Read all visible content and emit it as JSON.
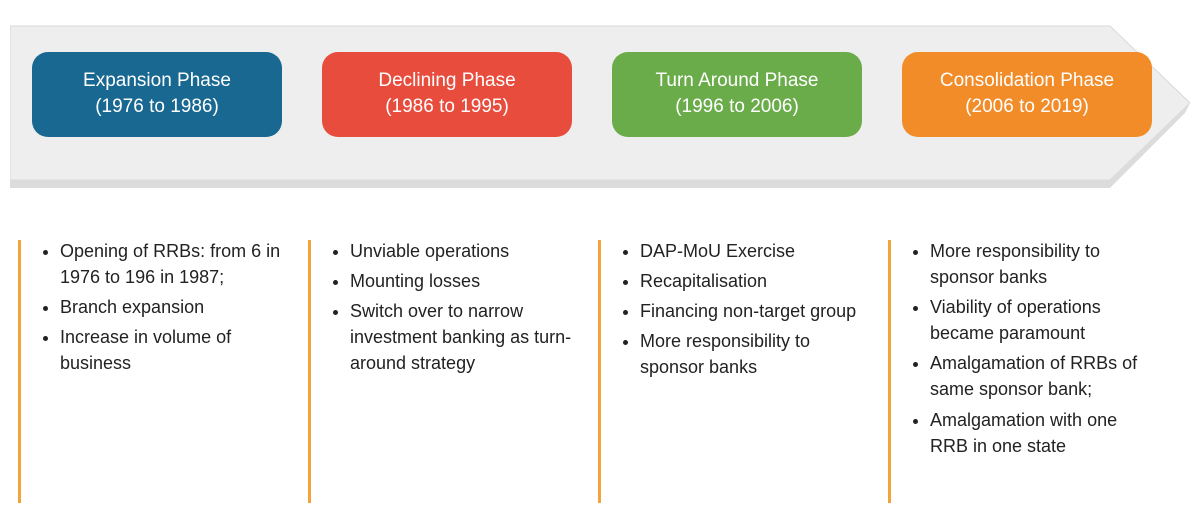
{
  "diagram": {
    "type": "infographic",
    "background_color": "#ffffff",
    "arrow_fill": "#eeeeee",
    "arrow_border": "#d9d9d9",
    "arrow_shadow": "#dcdcdc",
    "text_color": "#222222",
    "phase_font_size": 19,
    "bullet_font_size": 18,
    "columns": [
      {
        "title": "Expansion Phase",
        "years": "(1976 to 1986)",
        "color": "#186891",
        "accent": "#f2a33a",
        "bullets": [
          "Opening of RRBs: from 6 in 1976 to 196 in 1987;",
          "Branch expansion",
          "Increase in volume of business"
        ]
      },
      {
        "title": "Declining Phase",
        "years": "(1986 to 1995)",
        "color": "#e84c3d",
        "accent": "#f2a33a",
        "bullets": [
          "Unviable operations",
          "Mounting losses",
          "Switch over to narrow investment banking as turn-around strategy"
        ]
      },
      {
        "title": "Turn Around Phase",
        "years": "(1996 to 2006)",
        "color": "#6aab4a",
        "accent": "#f2a33a",
        "bullets": [
          "DAP-MoU Exercise",
          "Recapitalisation",
          "Financing non-target group",
          "More responsibility to sponsor banks"
        ]
      },
      {
        "title": "Consolidation Phase",
        "years": "(2006 to 2019)",
        "color": "#f28c28",
        "accent": "#f2a33a",
        "bullets": [
          "More responsibility to sponsor banks",
          "Viability of operations became paramount",
          "Amalgamation of RRBs of same sponsor bank;",
          "Amalgamation with one RRB in one state"
        ]
      }
    ]
  }
}
